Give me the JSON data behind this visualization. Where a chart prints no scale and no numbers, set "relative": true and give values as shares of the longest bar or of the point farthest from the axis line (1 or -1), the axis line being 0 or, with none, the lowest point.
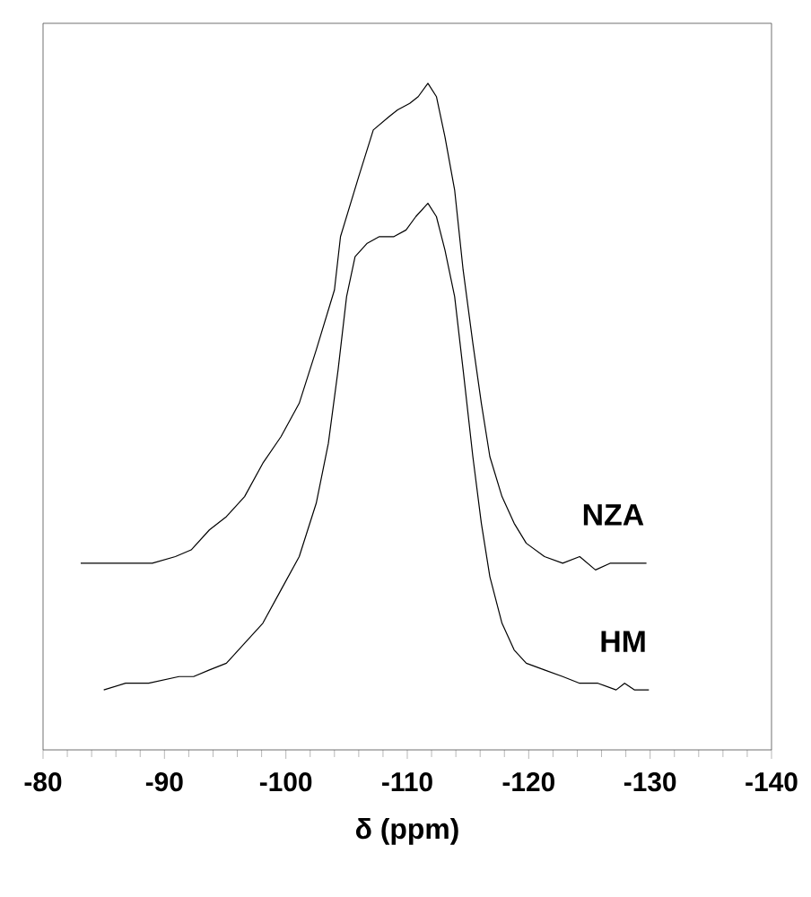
{
  "chart_data": {
    "type": "line",
    "relative": true,
    "xlabel": "δ (ppm)",
    "xlim": [
      -80,
      -140
    ],
    "xticks": [
      -80,
      -90,
      -100,
      -110,
      -120,
      -130,
      -140
    ],
    "legend": false,
    "marker": "none",
    "line_style": "solid",
    "series": [
      {
        "name": "NZA",
        "color": "#000000",
        "x": [
          -83.1,
          -84.8,
          -87.0,
          -89.0,
          -90.9,
          -92.2,
          -93.7,
          -95.1,
          -96.6,
          -98.1,
          -99.6,
          -101.1,
          -102.5,
          -104.0,
          -104.5,
          -106.0,
          -107.2,
          -108.5,
          -109.2,
          -110.2,
          -110.9,
          -111.7,
          -112.4,
          -113.1,
          -113.9,
          -114.6,
          -115.4,
          -116.1,
          -116.8,
          -117.8,
          -118.8,
          -119.8,
          -121.3,
          -122.8,
          -124.2,
          -125.5,
          -126.7,
          -128.2,
          -129.7
        ],
        "values": [
          0.28,
          0.28,
          0.28,
          0.28,
          0.29,
          0.3,
          0.33,
          0.35,
          0.38,
          0.43,
          0.47,
          0.52,
          0.6,
          0.69,
          0.77,
          0.86,
          0.93,
          0.95,
          0.96,
          0.97,
          0.98,
          1.0,
          0.98,
          0.92,
          0.84,
          0.72,
          0.61,
          0.52,
          0.44,
          0.38,
          0.34,
          0.31,
          0.29,
          0.28,
          0.29,
          0.27,
          0.28,
          0.28,
          0.28
        ]
      },
      {
        "name": "HM",
        "color": "#000000",
        "x": [
          -85.0,
          -86.8,
          -88.7,
          -91.2,
          -92.4,
          -93.7,
          -95.1,
          -96.6,
          -98.1,
          -99.6,
          -101.1,
          -102.5,
          -103.5,
          -104.3,
          -105.0,
          -105.7,
          -106.7,
          -107.7,
          -108.9,
          -109.9,
          -110.7,
          -111.7,
          -112.4,
          -113.1,
          -113.9,
          -114.6,
          -115.4,
          -116.1,
          -116.8,
          -117.8,
          -118.8,
          -119.8,
          -121.3,
          -122.8,
          -124.2,
          -125.7,
          -127.2,
          -127.9,
          -128.7,
          -129.9
        ],
        "values": [
          0.09,
          0.1,
          0.1,
          0.11,
          0.11,
          0.12,
          0.13,
          0.16,
          0.19,
          0.24,
          0.29,
          0.37,
          0.46,
          0.57,
          0.68,
          0.74,
          0.76,
          0.77,
          0.77,
          0.78,
          0.8,
          0.82,
          0.8,
          0.75,
          0.68,
          0.57,
          0.44,
          0.34,
          0.26,
          0.19,
          0.15,
          0.13,
          0.12,
          0.11,
          0.1,
          0.1,
          0.09,
          0.1,
          0.09,
          0.09
        ]
      }
    ]
  }
}
